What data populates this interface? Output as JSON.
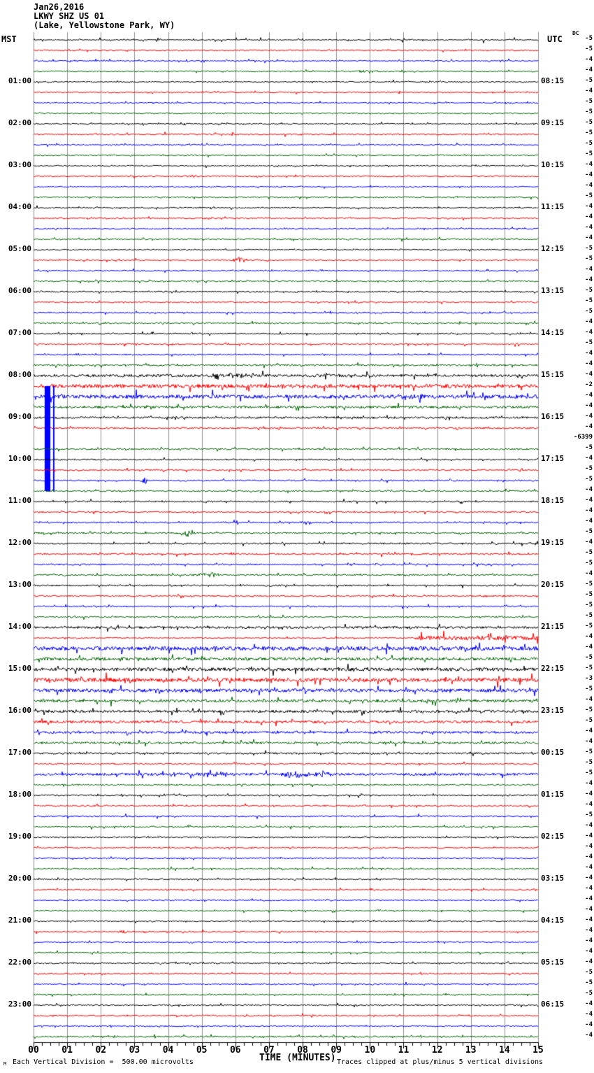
{
  "title": {
    "date": "Jan26,2016",
    "station": "LKWY SHZ US 01",
    "location": "(Lake, Yellowstone Park, WY)"
  },
  "header": {
    "left_timezone": "MST",
    "right_timezone": "UTC",
    "dc_header": "DC"
  },
  "footer": {
    "scale_note": "Each Vertical Division =  500.00 microvolts",
    "time_axis_label": "TIME (MINUTES)",
    "clip_note": "Traces clipped at plus/minus 5 vertical divisions",
    "corner_glyph": "M"
  },
  "colors": {
    "trace_cycle": [
      "#000000",
      "#ff0000",
      "#0000ff",
      "#006600"
    ],
    "grid": "#909090",
    "axis": "#000000",
    "background": "#ffffff"
  },
  "chart_data": {
    "type": "line",
    "title": "LKWY SHZ US 01 helicorder, Jan26,2016 (Lake, Yellowstone Park, WY)",
    "xlabel": "TIME (MINUTES)",
    "x_range_minutes": [
      0,
      15
    ],
    "x_tick_labels": [
      "00",
      "01",
      "02",
      "03",
      "04",
      "05",
      "06",
      "07",
      "08",
      "09",
      "10",
      "11",
      "12",
      "13",
      "14",
      "15"
    ],
    "minor_ticks_per_minute": 4,
    "lines_per_hour": 4,
    "minutes_per_line": 15,
    "clip_limit_divisions": 5,
    "microvolts_per_division": "500.00",
    "grid": true,
    "hour_rows": [
      4,
      8,
      12,
      16,
      20,
      24,
      28,
      32,
      36,
      40,
      44,
      48,
      52,
      56,
      60,
      64,
      68,
      72,
      76,
      80,
      84,
      88,
      92
    ],
    "mst_hour_labels": [
      "01:00",
      "02:00",
      "03:00",
      "04:00",
      "05:00",
      "06:00",
      "07:00",
      "08:00",
      "09:00",
      "10:00",
      "11:00",
      "12:00",
      "13:00",
      "14:00",
      "15:00",
      "16:00",
      "17:00",
      "18:00",
      "19:00",
      "20:00",
      "21:00",
      "22:00",
      "23:00"
    ],
    "utc_hour_labels": [
      "08:15",
      "09:15",
      "10:15",
      "11:15",
      "12:15",
      "13:15",
      "14:15",
      "15:15",
      "16:15",
      "17:15",
      "18:15",
      "19:15",
      "20:15",
      "21:15",
      "22:15",
      "23:15",
      "00:15",
      "01:15",
      "02:15",
      "03:15",
      "04:15",
      "05:15",
      "06:15"
    ],
    "rows": [
      {
        "dc": "-5",
        "amp": 0.7,
        "pop": 0.012,
        "events": [
          [
            3.7,
            0.08,
            3
          ]
        ]
      },
      {
        "dc": "-5",
        "amp": 0.8
      },
      {
        "dc": "-4",
        "amp": 0.8
      },
      {
        "dc": "-4",
        "amp": 0.8,
        "events": [
          [
            9.9,
            0.3,
            2.5
          ]
        ]
      },
      {
        "dc": "-5",
        "amp": 0.8
      },
      {
        "dc": "-4",
        "amp": 0.8
      },
      {
        "dc": "-5",
        "amp": 0.8
      },
      {
        "dc": "-5",
        "amp": 0.9
      },
      {
        "dc": "-5",
        "amp": 0.8
      },
      {
        "dc": "-5",
        "amp": 0.9
      },
      {
        "dc": "-5",
        "amp": 0.8
      },
      {
        "dc": "-5",
        "amp": 0.8
      },
      {
        "dc": "-4",
        "amp": 0.8
      },
      {
        "dc": "-4",
        "amp": 0.8,
        "events": [
          [
            4.75,
            0.15,
            3
          ]
        ]
      },
      {
        "dc": "-4",
        "amp": 0.8
      },
      {
        "dc": "-5",
        "amp": 0.9
      },
      {
        "dc": "-4",
        "amp": 0.8
      },
      {
        "dc": "-4",
        "amp": 0.8
      },
      {
        "dc": "-4",
        "amp": 0.8
      },
      {
        "dc": "-4",
        "amp": 0.9
      },
      {
        "dc": "-5",
        "amp": 0.8
      },
      {
        "dc": "-5",
        "amp": 0.8,
        "events": [
          [
            6.15,
            0.25,
            4
          ]
        ]
      },
      {
        "dc": "-4",
        "amp": 0.8
      },
      {
        "dc": "-4",
        "amp": 0.9
      },
      {
        "dc": "-5",
        "amp": 0.9
      },
      {
        "dc": "-5",
        "amp": 0.9
      },
      {
        "dc": "-5",
        "amp": 0.9
      },
      {
        "dc": "-4",
        "amp": 1.0
      },
      {
        "dc": "-4",
        "amp": 0.9
      },
      {
        "dc": "-5",
        "amp": 0.9
      },
      {
        "dc": "-4",
        "amp": 0.9
      },
      {
        "dc": "-4",
        "amp": 1.2
      },
      {
        "dc": "-4",
        "amp": 1.8,
        "events": [
          [
            5.45,
            0.08,
            7
          ],
          [
            5.9,
            0.5,
            3
          ],
          [
            8.6,
            0.4,
            3
          ],
          [
            9.3,
            0.3,
            2.5
          ]
        ]
      },
      {
        "dc": "-2",
        "amp": 2.6
      },
      {
        "dc": "-4",
        "amp": 2.6,
        "events": [
          [
            11.5,
            0.05,
            8
          ],
          [
            11.1,
            0.2,
            3
          ]
        ]
      },
      {
        "dc": "-4",
        "amp": 1.6
      },
      {
        "dc": "-4",
        "amp": 1.4,
        "events": [
          [
            4.15,
            0.1,
            3
          ]
        ]
      },
      {
        "dc": "-4",
        "amp": 1.1,
        "events": [
          [
            12.6,
            0.1,
            2.5
          ]
        ]
      },
      {
        "dc": "-6399",
        "amp": 0,
        "clipped": true,
        "bars": [
          [
            0.33,
            0.5
          ],
          [
            0.58,
            0.62
          ]
        ]
      },
      {
        "dc": "-5",
        "amp": 1.1
      },
      {
        "dc": "-4",
        "amp": 1.0,
        "events": [
          [
            7.85,
            0.06,
            4
          ]
        ]
      },
      {
        "dc": "-5",
        "amp": 1.0
      },
      {
        "dc": "-5",
        "amp": 1.0,
        "events": [
          [
            3.3,
            0.08,
            6
          ]
        ]
      },
      {
        "dc": "-4",
        "amp": 1.0
      },
      {
        "dc": "-4",
        "amp": 1.1
      },
      {
        "dc": "-4",
        "amp": 1.0
      },
      {
        "dc": "-4",
        "amp": 1.1,
        "events": [
          [
            8.1,
            0.15,
            4
          ]
        ]
      },
      {
        "dc": "-5",
        "amp": 1.1,
        "events": [
          [
            4.6,
            0.2,
            5
          ]
        ]
      },
      {
        "dc": "-4",
        "amp": 1.1
      },
      {
        "dc": "-5",
        "amp": 1.1
      },
      {
        "dc": "-5",
        "amp": 1.1
      },
      {
        "dc": "-4",
        "amp": 1.1,
        "events": [
          [
            5.2,
            0.3,
            3
          ]
        ]
      },
      {
        "dc": "-5",
        "amp": 1.1
      },
      {
        "dc": "-5",
        "amp": 1.0
      },
      {
        "dc": "-5",
        "amp": 1.0
      },
      {
        "dc": "-5",
        "amp": 1.0
      },
      {
        "dc": "-5",
        "amp": 1.6
      },
      {
        "dc": "-4",
        "amp": 0.8,
        "amp2": [
          11.35,
          3
        ]
      },
      {
        "dc": "-4",
        "amp": 2.8
      },
      {
        "dc": "-5",
        "amp": 2.2
      },
      {
        "dc": "-5",
        "amp": 2.4
      },
      {
        "dc": "-3",
        "amp": 2.8
      },
      {
        "dc": "-5",
        "amp": 2.4
      },
      {
        "dc": "-4",
        "amp": 2.0
      },
      {
        "dc": "-5",
        "amp": 1.8
      },
      {
        "dc": "-5",
        "amp": 1.8
      },
      {
        "dc": "-4",
        "amp": 1.6
      },
      {
        "dc": "-4",
        "amp": 1.5
      },
      {
        "dc": "-5",
        "amp": 1.2
      },
      {
        "dc": "-5",
        "amp": 1.0
      },
      {
        "dc": "-5",
        "amp": 1.8,
        "events": [
          [
            4.2,
            0.3,
            3
          ],
          [
            5.3,
            0.5,
            4
          ],
          [
            7.8,
            0.35,
            6
          ],
          [
            8.6,
            0.25,
            4
          ]
        ]
      },
      {
        "dc": "-4",
        "amp": 1.1
      },
      {
        "dc": "-4",
        "amp": 1.0
      },
      {
        "dc": "-4",
        "amp": 1.0
      },
      {
        "dc": "-5",
        "amp": 1.0
      },
      {
        "dc": "-4",
        "amp": 1.0
      },
      {
        "dc": "-4",
        "amp": 0.9
      },
      {
        "dc": "-4",
        "amp": 0.9
      },
      {
        "dc": "-4",
        "amp": 0.9
      },
      {
        "dc": "-4",
        "amp": 0.9
      },
      {
        "dc": "-4",
        "amp": 0.9
      },
      {
        "dc": "-4",
        "amp": 0.8
      },
      {
        "dc": "-4",
        "amp": 0.8
      },
      {
        "dc": "-4",
        "amp": 0.8
      },
      {
        "dc": "-4",
        "amp": 0.8
      },
      {
        "dc": "-4",
        "amp": 0.8,
        "events": [
          [
            2.65,
            0.1,
            3
          ]
        ]
      },
      {
        "dc": "-4",
        "amp": 0.8
      },
      {
        "dc": "-4",
        "amp": 0.8
      },
      {
        "dc": "-4",
        "amp": 0.9
      },
      {
        "dc": "-5",
        "amp": 0.9
      },
      {
        "dc": "-5",
        "amp": 0.9
      },
      {
        "dc": "-5",
        "amp": 0.9
      },
      {
        "dc": "-4",
        "amp": 0.9
      },
      {
        "dc": "-4",
        "amp": 0.9
      },
      {
        "dc": "-4",
        "amp": 0.9
      },
      {
        "dc": "-4",
        "amp": 1.0
      }
    ]
  }
}
